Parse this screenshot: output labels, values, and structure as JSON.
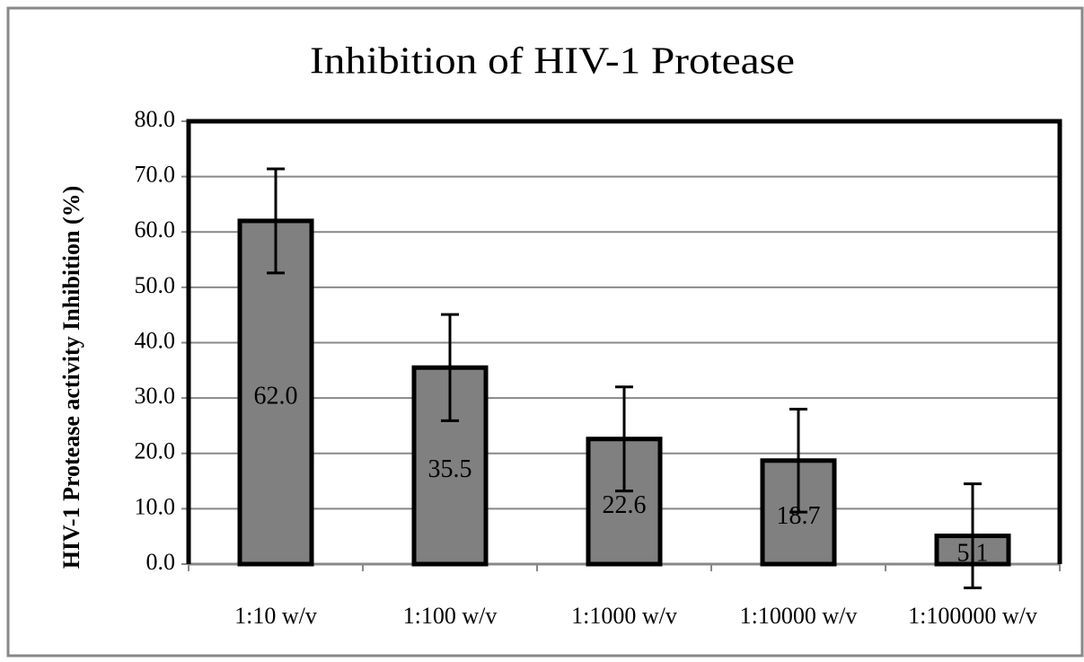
{
  "chart_data": {
    "type": "bar",
    "title": "Inhibition of HIV-1 Protease",
    "ylabel": "HIV-1 Protease activity Inhibition (%)",
    "categories": [
      "1:10 w/v",
      "1:100 w/v",
      "1:1000 w/v",
      "1:10000 w/v",
      "1:100000 w/v"
    ],
    "values": [
      62,
      35.5,
      22.6,
      18.7,
      5.1
    ],
    "value_labels": [
      "62.0",
      "35.5",
      "22.6",
      "18.7",
      "5.1"
    ],
    "errors": [
      9.4,
      9.6,
      9.4,
      9.3,
      9.4
    ],
    "color": "#808080",
    "ylim": [
      0,
      80
    ],
    "yticks": [
      {
        "value": 0,
        "label": "0.0"
      },
      {
        "value": 10,
        "label": "10.0"
      },
      {
        "value": 20,
        "label": "20.0"
      },
      {
        "value": 30,
        "label": "30.0"
      },
      {
        "value": 40,
        "label": "40.0"
      },
      {
        "value": 50,
        "label": "50.0"
      },
      {
        "value": 60,
        "label": "60.0"
      },
      {
        "value": 70,
        "label": "70.0"
      },
      {
        "value": 80,
        "label": "80.0"
      }
    ],
    "grid": true
  }
}
